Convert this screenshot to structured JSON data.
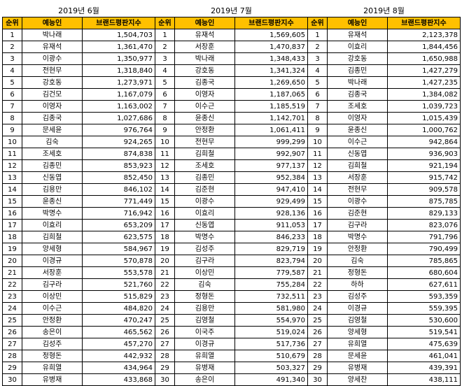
{
  "headers": [
    "순위",
    "예능인",
    "브랜드평판지수"
  ],
  "months": [
    {
      "title": "2019년 6월",
      "rows": [
        [
          "1",
          "박나래",
          "1,504,703"
        ],
        [
          "2",
          "유재석",
          "1,361,470"
        ],
        [
          "3",
          "이광수",
          "1,350,977"
        ],
        [
          "4",
          "전현무",
          "1,318,840"
        ],
        [
          "5",
          "강호동",
          "1,273,971"
        ],
        [
          "6",
          "김건모",
          "1,167,079"
        ],
        [
          "7",
          "이영자",
          "1,163,002"
        ],
        [
          "8",
          "김종국",
          "1,027,686"
        ],
        [
          "9",
          "문세윤",
          "976,764"
        ],
        [
          "10",
          "김숙",
          "924,265"
        ],
        [
          "11",
          "조세호",
          "874,838"
        ],
        [
          "12",
          "김종민",
          "853,923"
        ],
        [
          "13",
          "신동엽",
          "852,450"
        ],
        [
          "14",
          "김용만",
          "846,102"
        ],
        [
          "15",
          "윤종신",
          "771,449"
        ],
        [
          "16",
          "박명수",
          "716,942"
        ],
        [
          "17",
          "이효리",
          "653,209"
        ],
        [
          "18",
          "김희철",
          "623,575"
        ],
        [
          "19",
          "양세형",
          "584,967"
        ],
        [
          "20",
          "이경규",
          "570,878"
        ],
        [
          "21",
          "서장훈",
          "553,578"
        ],
        [
          "22",
          "김구라",
          "521,760"
        ],
        [
          "23",
          "이상민",
          "515,829"
        ],
        [
          "24",
          "이수근",
          "484,820"
        ],
        [
          "25",
          "안정환",
          "470,247"
        ],
        [
          "26",
          "송은이",
          "465,562"
        ],
        [
          "27",
          "김성주",
          "457,270"
        ],
        [
          "28",
          "정형돈",
          "442,932"
        ],
        [
          "29",
          "유희열",
          "434,964"
        ],
        [
          "30",
          "유병재",
          "433,868"
        ]
      ]
    },
    {
      "title": "2019년 7월",
      "rows": [
        [
          "1",
          "유재석",
          "1,569,605"
        ],
        [
          "2",
          "서장훈",
          "1,470,837"
        ],
        [
          "3",
          "박나래",
          "1,348,433"
        ],
        [
          "4",
          "강호동",
          "1,341,324"
        ],
        [
          "5",
          "김종국",
          "1,269,650"
        ],
        [
          "6",
          "이영자",
          "1,187,065"
        ],
        [
          "7",
          "이수근",
          "1,185,519"
        ],
        [
          "8",
          "윤종신",
          "1,142,701"
        ],
        [
          "9",
          "안정환",
          "1,061,411"
        ],
        [
          "10",
          "전현무",
          "999,299"
        ],
        [
          "11",
          "김희철",
          "992,907"
        ],
        [
          "12",
          "조세호",
          "977,137"
        ],
        [
          "13",
          "김종민",
          "952,384"
        ],
        [
          "14",
          "김준현",
          "947,410"
        ],
        [
          "15",
          "이광수",
          "929,499"
        ],
        [
          "16",
          "이효리",
          "928,136"
        ],
        [
          "17",
          "신동엽",
          "911,053"
        ],
        [
          "18",
          "박명수",
          "846,233"
        ],
        [
          "19",
          "김성주",
          "829,719"
        ],
        [
          "20",
          "김구라",
          "823,794"
        ],
        [
          "21",
          "이상민",
          "779,587"
        ],
        [
          "22",
          "김숙",
          "755,284"
        ],
        [
          "23",
          "정형돈",
          "732,511"
        ],
        [
          "24",
          "김용만",
          "581,980"
        ],
        [
          "25",
          "김영철",
          "554,970"
        ],
        [
          "26",
          "이국주",
          "519,024"
        ],
        [
          "27",
          "이경규",
          "517,736"
        ],
        [
          "28",
          "유희열",
          "510,679"
        ],
        [
          "29",
          "유병재",
          "503,327"
        ],
        [
          "30",
          "송은이",
          "491,340"
        ]
      ]
    },
    {
      "title": "2019년 8월",
      "rows": [
        [
          "1",
          "유재석",
          "2,123,378"
        ],
        [
          "2",
          "이효리",
          "1,844,456"
        ],
        [
          "3",
          "강호동",
          "1,650,988"
        ],
        [
          "4",
          "김종민",
          "1,427,279"
        ],
        [
          "5",
          "박나래",
          "1,427,235"
        ],
        [
          "6",
          "김종국",
          "1,384,082"
        ],
        [
          "7",
          "조세호",
          "1,039,723"
        ],
        [
          "8",
          "이영자",
          "1,015,439"
        ],
        [
          "9",
          "윤종신",
          "1,000,762"
        ],
        [
          "10",
          "이수근",
          "942,864"
        ],
        [
          "11",
          "신동엽",
          "936,903"
        ],
        [
          "12",
          "김희철",
          "921,194"
        ],
        [
          "13",
          "서장훈",
          "915,742"
        ],
        [
          "14",
          "전현무",
          "909,578"
        ],
        [
          "15",
          "이광수",
          "875,785"
        ],
        [
          "16",
          "김준현",
          "829,133"
        ],
        [
          "17",
          "김구라",
          "823,076"
        ],
        [
          "18",
          "박명수",
          "791,796"
        ],
        [
          "19",
          "안정환",
          "790,499"
        ],
        [
          "20",
          "김숙",
          "785,865"
        ],
        [
          "21",
          "정형돈",
          "680,604"
        ],
        [
          "22",
          "하하",
          "627,611"
        ],
        [
          "23",
          "김성주",
          "593,359"
        ],
        [
          "24",
          "이경규",
          "559,395"
        ],
        [
          "25",
          "김영철",
          "530,600"
        ],
        [
          "26",
          "양세형",
          "519,541"
        ],
        [
          "27",
          "유희열",
          "475,639"
        ],
        [
          "28",
          "문세윤",
          "461,041"
        ],
        [
          "29",
          "유병재",
          "439,391"
        ],
        [
          "30",
          "양세찬",
          "438,111"
        ]
      ]
    }
  ]
}
